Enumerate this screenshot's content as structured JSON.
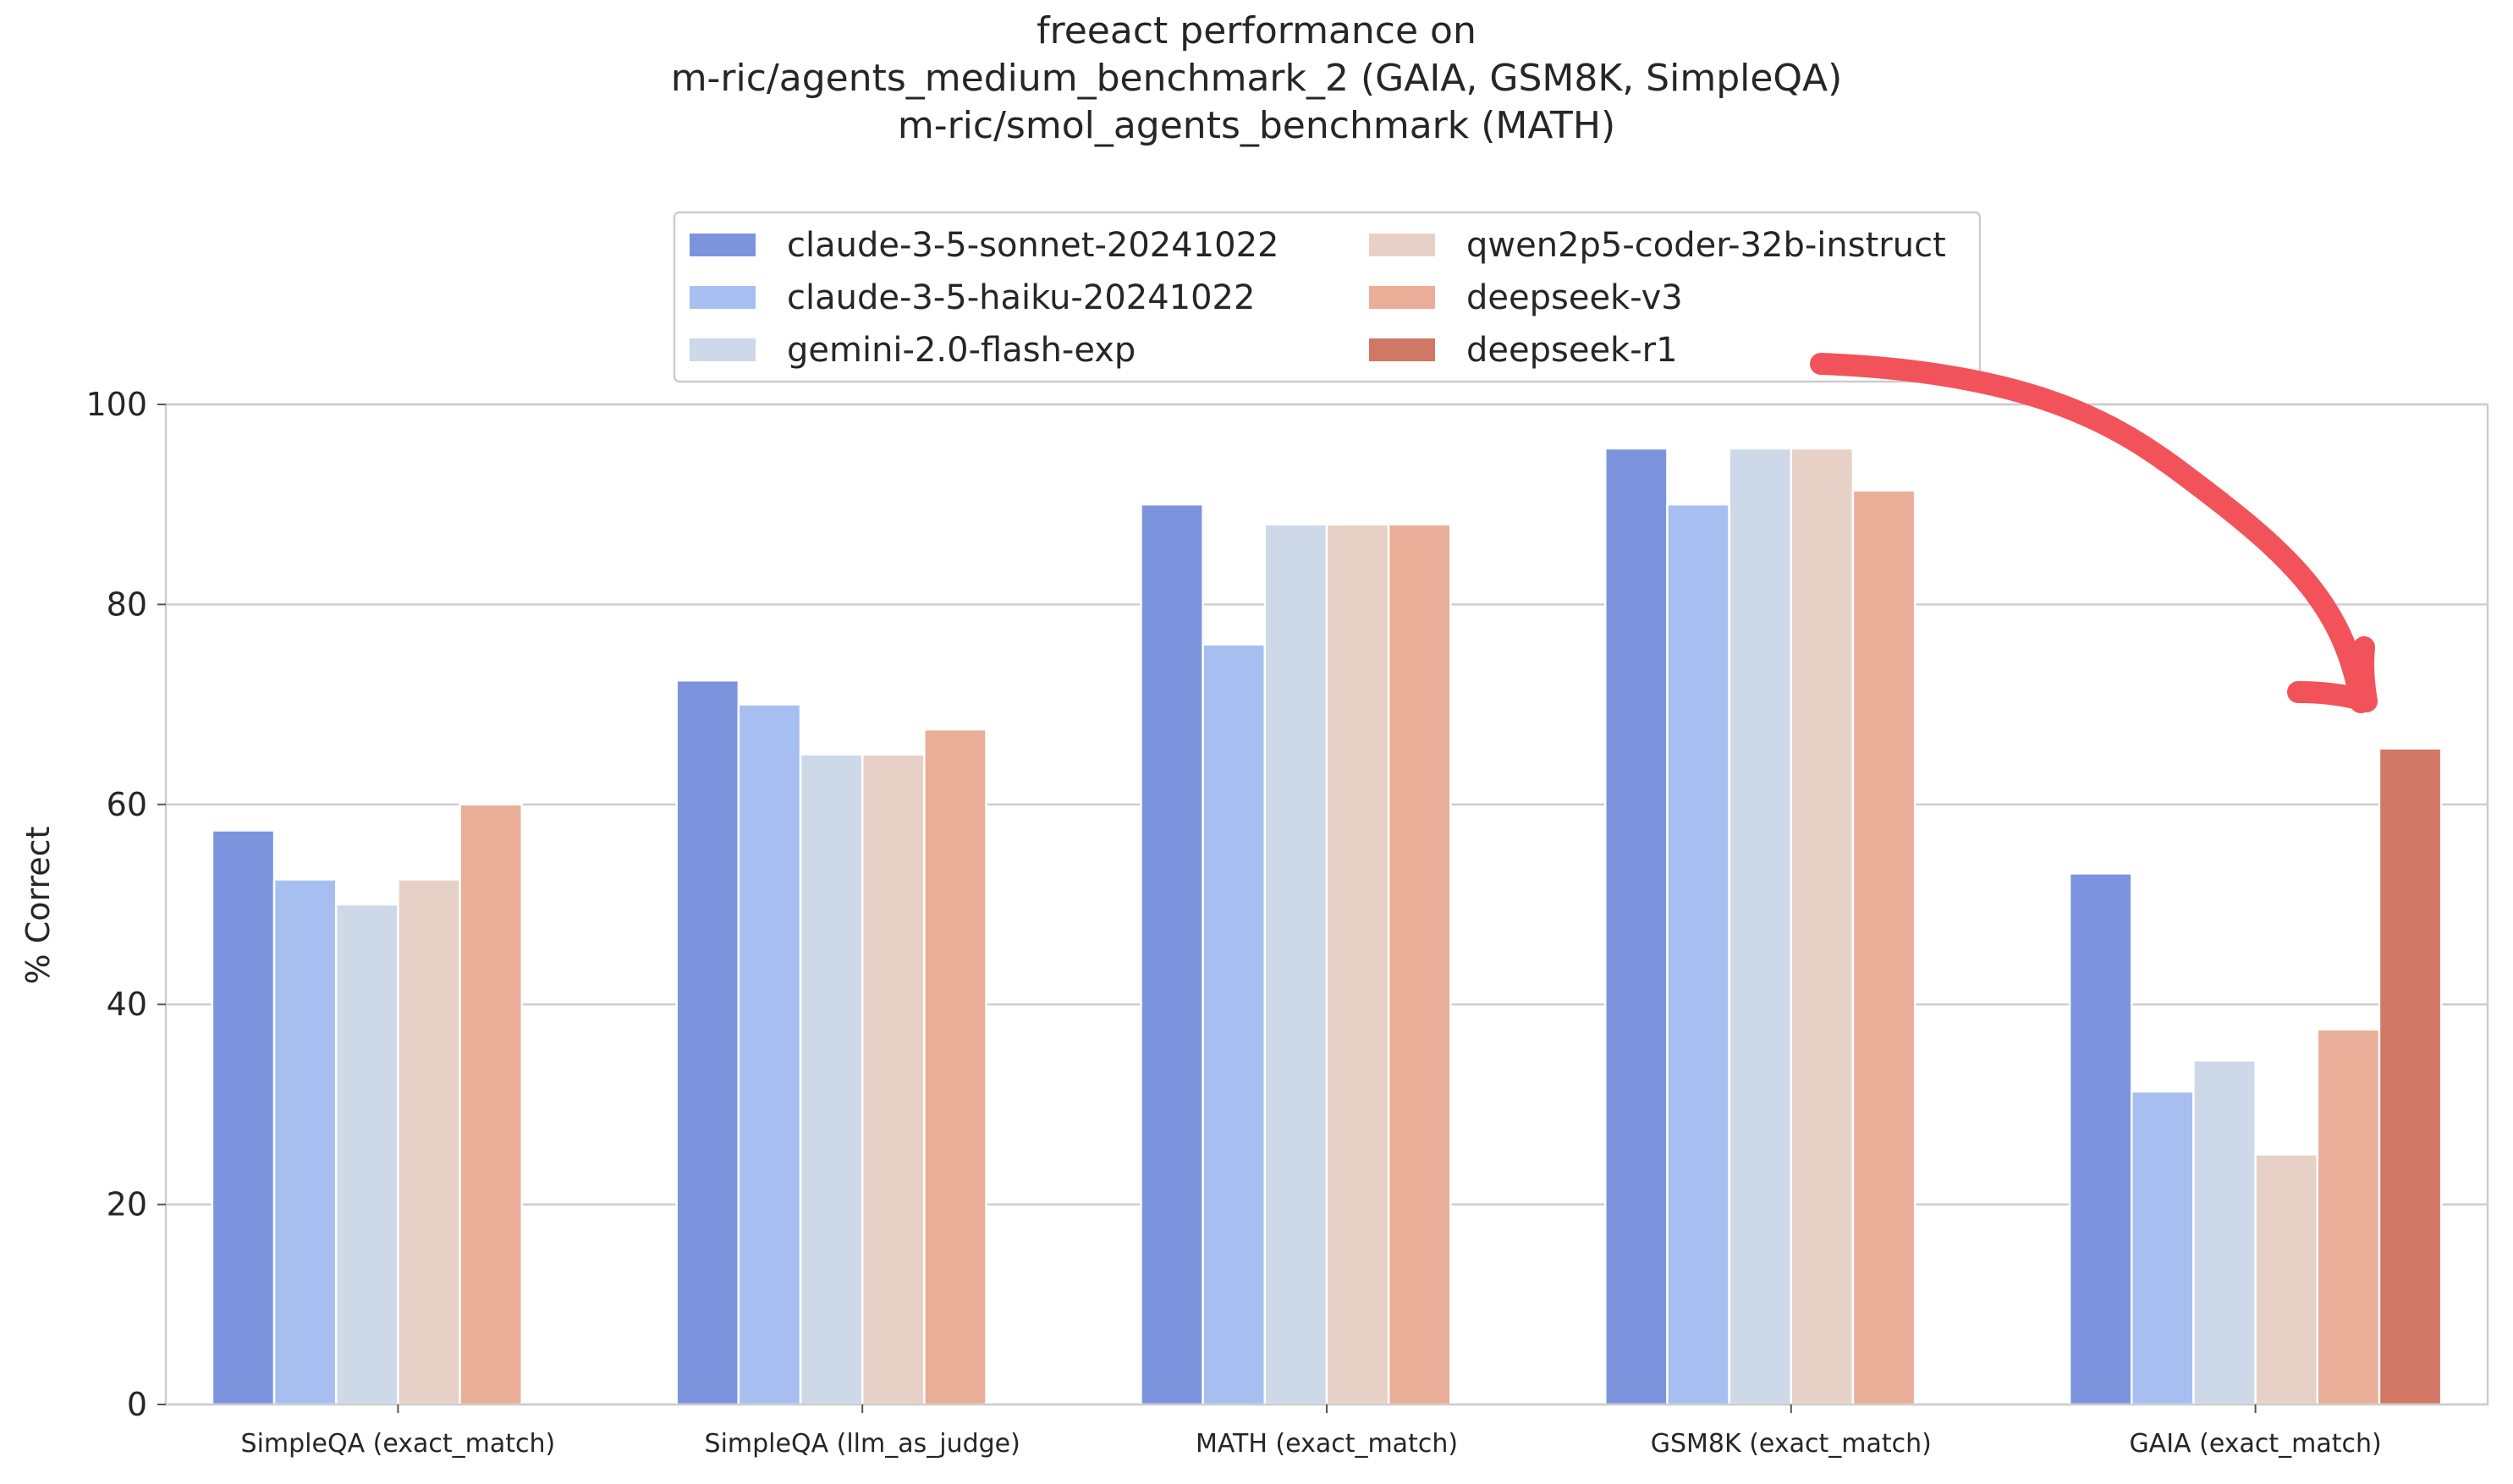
{
  "chart_data": {
    "type": "bar",
    "title_lines": [
      "freeact performance on",
      "m-ric/agents_medium_benchmark_2 (GAIA, GSM8K, SimpleQA)",
      "m-ric/smol_agents_benchmark (MATH)"
    ],
    "xlabel": "",
    "ylabel": "% Correct",
    "ylim": [
      0,
      100
    ],
    "yticks": [
      0,
      20,
      40,
      60,
      80,
      100
    ],
    "grid": true,
    "legend_placement": "upper center",
    "categories": [
      "SimpleQA (exact_match)",
      "SimpleQA (llm_as_judge)",
      "MATH (exact_match)",
      "GSM8K (exact_match)",
      "GAIA (exact_match)"
    ],
    "series": [
      {
        "name": "claude-3-5-sonnet-20241022",
        "color": "#7b94dd",
        "values": [
          57.4,
          72.4,
          90.0,
          95.6,
          53.1
        ]
      },
      {
        "name": "claude-3-5-haiku-20241022",
        "color": "#a7bff0",
        "values": [
          52.5,
          70.0,
          76.0,
          90.0,
          31.3
        ]
      },
      {
        "name": "gemini-2.0-flash-exp",
        "color": "#cdd8e9",
        "values": [
          50.0,
          65.0,
          88.0,
          95.6,
          34.4
        ]
      },
      {
        "name": "qwen2p5-coder-32b-instruct",
        "color": "#e7d1c7",
        "values": [
          52.5,
          65.0,
          88.0,
          95.6,
          25.0
        ]
      },
      {
        "name": "deepseek-v3",
        "color": "#eaae98",
        "values": [
          60.0,
          67.5,
          88.0,
          91.4,
          37.5
        ]
      },
      {
        "name": "deepseek-r1",
        "color": "#d17766",
        "values": [
          null,
          null,
          null,
          null,
          65.6
        ]
      }
    ],
    "annotation": {
      "type": "hand-drawn-arrow",
      "color": "#f2535a",
      "points_to": "deepseek-r1 bar in GAIA (exact_match)"
    }
  }
}
